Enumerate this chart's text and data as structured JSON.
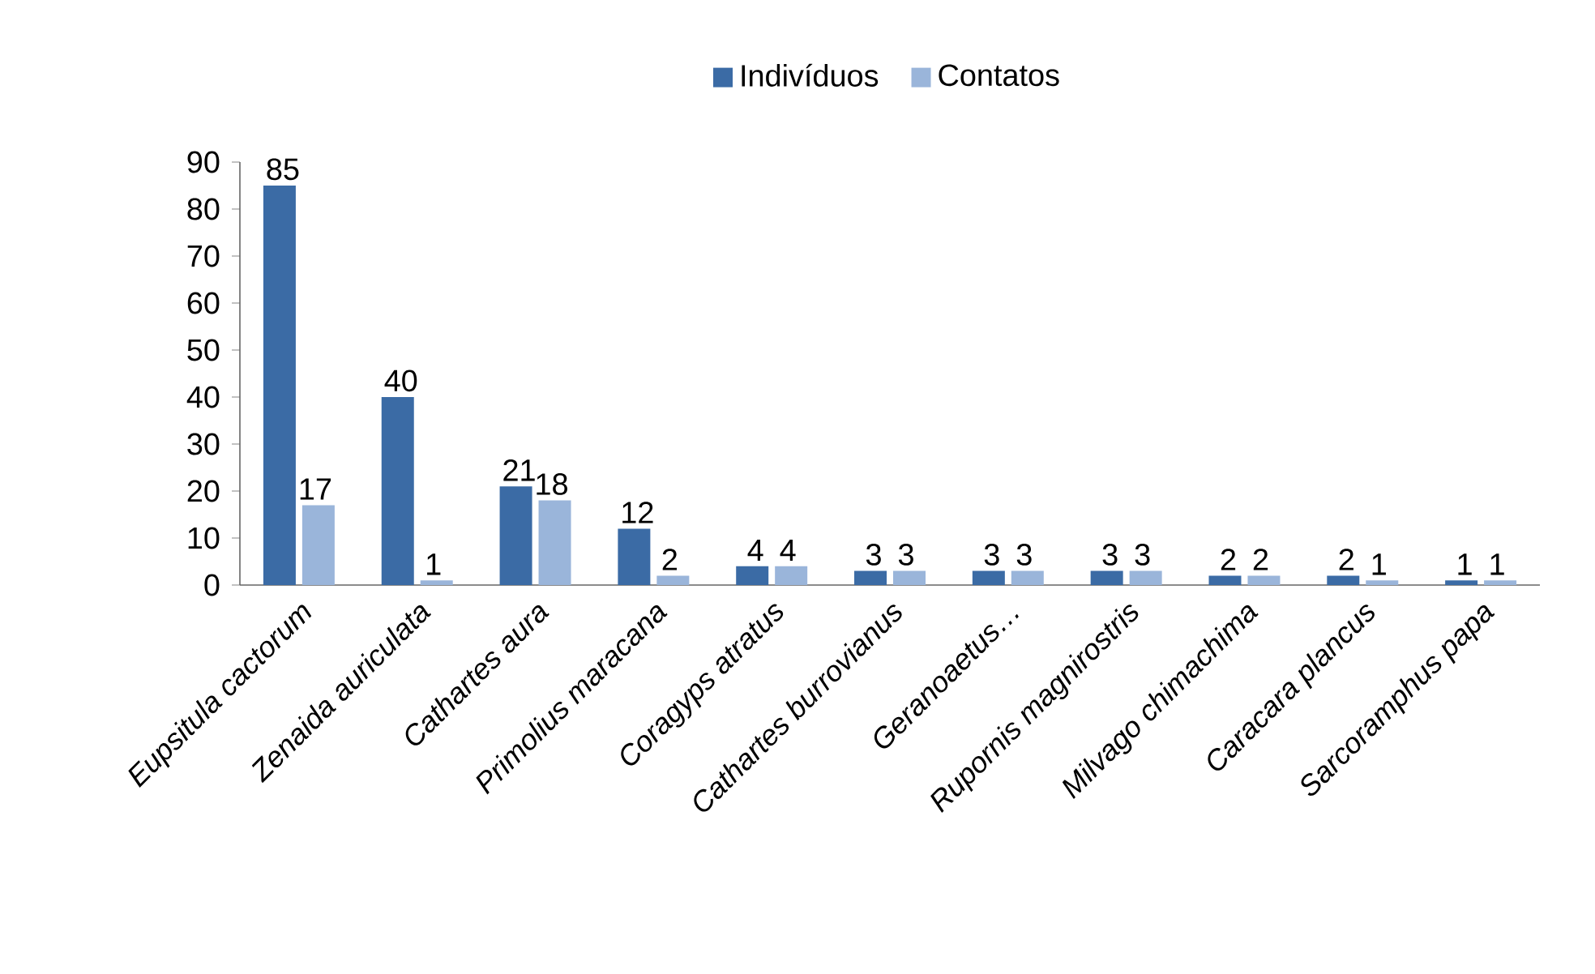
{
  "chart_data": {
    "type": "bar",
    "categories": [
      "Eupsitula cactorum",
      "Zenaida auriculata",
      "Cathartes aura",
      "Primolius maracana",
      "Coragyps atratus",
      "Cathartes burrovianus",
      "Geranoaetus…",
      "Rupornis magnirostris",
      "Milvago chimachima",
      "Caracara plancus",
      "Sarcoramphus papa"
    ],
    "series": [
      {
        "name": "Indivíduos",
        "color": "#3b6ba5",
        "values": [
          85,
          40,
          21,
          12,
          4,
          3,
          3,
          3,
          2,
          2,
          1
        ]
      },
      {
        "name": "Contatos",
        "color": "#9ab5da",
        "values": [
          17,
          1,
          18,
          2,
          4,
          3,
          3,
          3,
          2,
          1,
          1
        ]
      }
    ],
    "ylim": [
      0,
      90
    ],
    "yticks": [
      0,
      10,
      20,
      30,
      40,
      50,
      60,
      70,
      80,
      90
    ],
    "data_labels": true,
    "legend": "top",
    "grid": false
  }
}
